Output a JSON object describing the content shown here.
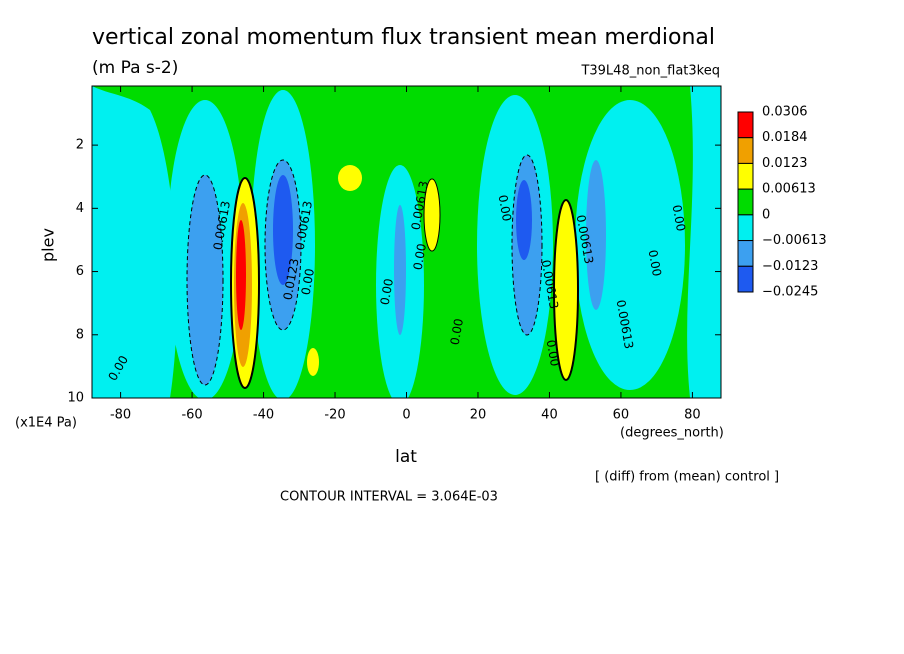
{
  "chart_data": {
    "type": "contour",
    "title": "vertical zonal momentum flux transient mean merdional",
    "subtitle": "(m Pa s-2)",
    "run_label": "T39L48_non_flat3keq",
    "xlabel": "lat",
    "ylabel": "plev",
    "x_unit": "(degrees_north)",
    "y_unit": "(x1E4 Pa)",
    "note": "[ (diff) from (mean) control ]",
    "contour_interval": "CONTOUR INTERVAL = 3.064E-03",
    "xlim": [
      -88,
      88
    ],
    "xticks": [
      -80,
      -60,
      -40,
      -20,
      0,
      20,
      40,
      60,
      80
    ],
    "ylim": [
      10,
      0.13
    ],
    "yticks": [
      2,
      4,
      6,
      8,
      10
    ],
    "levels": [
      0.0306,
      0.0184,
      0.0123,
      0.00613,
      0,
      {
        "value": -0.00613,
        "label": "−0.00613"
      },
      {
        "value": -0.0123,
        "label": "−0.0123"
      },
      {
        "value": -0.0245,
        "label": "−0.0245"
      }
    ],
    "colors": [
      "#ff0000",
      "#f0a000",
      "#ffff00",
      "#00dc00",
      "#00f0f0",
      "#3ca0f0",
      "#1e5af0"
    ],
    "contour_labels": [
      "0.00",
      "0.00613",
      "0.0123",
      "0.00613",
      "0.00",
      "0.00",
      "0.00613",
      "0.00",
      "0.00",
      "0.00613",
      "0.00613",
      "0.00",
      "0.00",
      "0.00613",
      "0.00",
      "0.00"
    ]
  }
}
